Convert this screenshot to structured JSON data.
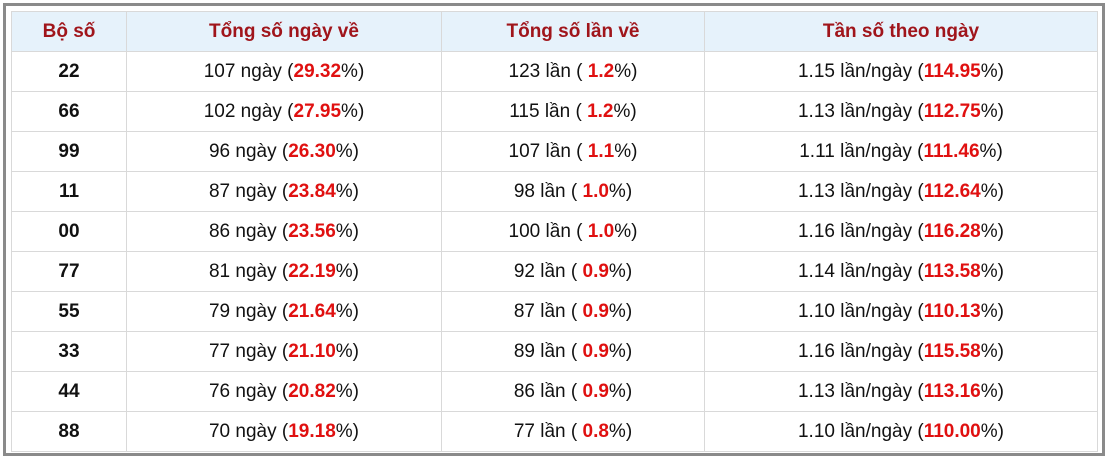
{
  "table": {
    "headers": [
      "Bộ số",
      "Tổng số ngày về",
      "Tổng số lần về",
      "Tần số theo ngày"
    ],
    "rows": [
      {
        "code": "22",
        "days": [
          "107 ngày (",
          "29.32",
          "%)"
        ],
        "times": [
          "123 lần ( ",
          "1.2",
          "%)"
        ],
        "freq": [
          "1.15 lần/ngày (",
          "114.95",
          "%)"
        ]
      },
      {
        "code": "66",
        "days": [
          "102 ngày (",
          "27.95",
          "%)"
        ],
        "times": [
          "115 lần ( ",
          "1.2",
          "%)"
        ],
        "freq": [
          "1.13 lần/ngày (",
          "112.75",
          "%)"
        ]
      },
      {
        "code": "99",
        "days": [
          "96 ngày (",
          "26.30",
          "%)"
        ],
        "times": [
          "107 lần ( ",
          "1.1",
          "%)"
        ],
        "freq": [
          "1.11 lần/ngày (",
          "111.46",
          "%)"
        ]
      },
      {
        "code": "11",
        "days": [
          "87 ngày (",
          "23.84",
          "%)"
        ],
        "times": [
          "98 lần ( ",
          "1.0",
          "%)"
        ],
        "freq": [
          "1.13 lần/ngày (",
          "112.64",
          "%)"
        ]
      },
      {
        "code": "00",
        "days": [
          "86 ngày (",
          "23.56",
          "%)"
        ],
        "times": [
          "100 lần ( ",
          "1.0",
          "%)"
        ],
        "freq": [
          "1.16 lần/ngày (",
          "116.28",
          "%)"
        ]
      },
      {
        "code": "77",
        "days": [
          "81 ngày (",
          "22.19",
          "%)"
        ],
        "times": [
          "92 lần ( ",
          "0.9",
          "%)"
        ],
        "freq": [
          "1.14 lần/ngày (",
          "113.58",
          "%)"
        ]
      },
      {
        "code": "55",
        "days": [
          "79 ngày (",
          "21.64",
          "%)"
        ],
        "times": [
          "87 lần ( ",
          "0.9",
          "%)"
        ],
        "freq": [
          "1.10 lần/ngày (",
          "110.13",
          "%)"
        ]
      },
      {
        "code": "33",
        "days": [
          "77 ngày (",
          "21.10",
          "%)"
        ],
        "times": [
          "89 lần ( ",
          "0.9",
          "%)"
        ],
        "freq": [
          "1.16 lần/ngày (",
          "115.58",
          "%)"
        ]
      },
      {
        "code": "44",
        "days": [
          "76 ngày (",
          "20.82",
          "%)"
        ],
        "times": [
          "86 lần ( ",
          "0.9",
          "%)"
        ],
        "freq": [
          "1.13 lần/ngày (",
          "113.16",
          "%)"
        ]
      },
      {
        "code": "88",
        "days": [
          "70 ngày (",
          "19.18",
          "%)"
        ],
        "times": [
          "77 lần ( ",
          "0.8",
          "%)"
        ],
        "freq": [
          "1.10 lần/ngày (",
          "110.00",
          "%)"
        ]
      }
    ]
  }
}
